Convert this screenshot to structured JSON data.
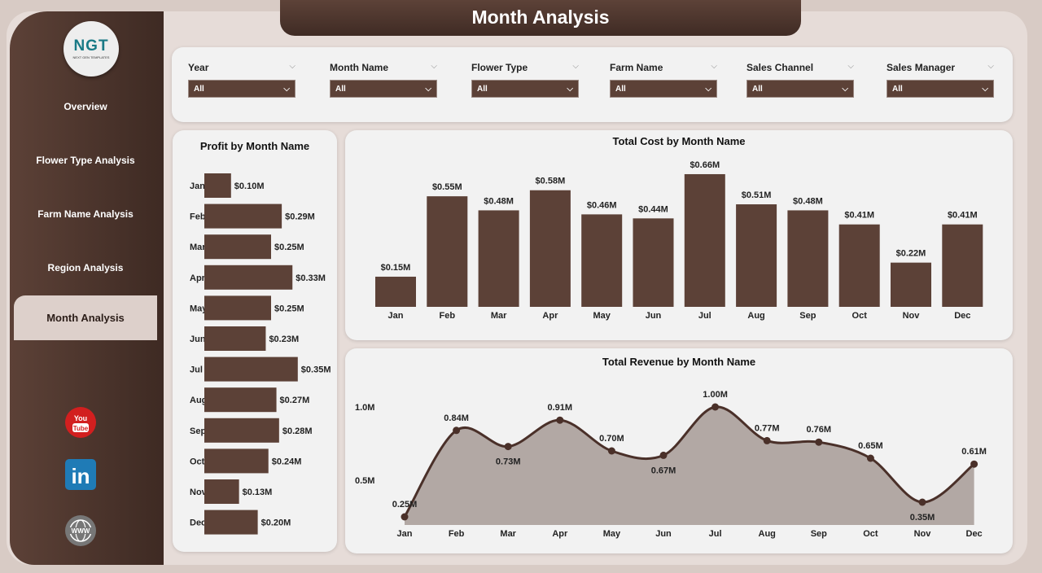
{
  "title": "Month Analysis",
  "logo": {
    "text": "NGT",
    "sub": "NEXT GEN TEMPLATES"
  },
  "nav": [
    {
      "label": "Overview"
    },
    {
      "label": "Flower Type Analysis"
    },
    {
      "label": "Farm Name Analysis"
    },
    {
      "label": "Region Analysis"
    },
    {
      "label": "Month Analysis",
      "active": true
    }
  ],
  "social": [
    {
      "icon": "youtube-icon",
      "label": "You Tube"
    },
    {
      "icon": "linkedin-icon",
      "label": "in"
    },
    {
      "icon": "globe-icon",
      "label": "WWW"
    }
  ],
  "filters": [
    {
      "label": "Year",
      "value": "All"
    },
    {
      "label": "Month Name",
      "value": "All"
    },
    {
      "label": "Flower Type",
      "value": "All"
    },
    {
      "label": "Farm Name",
      "value": "All"
    },
    {
      "label": "Sales Channel",
      "value": "All"
    },
    {
      "label": "Sales Manager",
      "value": "All"
    }
  ],
  "colors": {
    "brown": "#5c4137",
    "area": "#b2a8a4",
    "line": "#4a3029"
  },
  "chart_data": [
    {
      "type": "bar",
      "orientation": "horizontal",
      "title": "Profit by Month Name",
      "categories": [
        "Jan",
        "Feb",
        "Mar",
        "Apr",
        "May",
        "Jun",
        "Jul",
        "Aug",
        "Sep",
        "Oct",
        "Nov",
        "Dec"
      ],
      "values": [
        0.1,
        0.29,
        0.25,
        0.33,
        0.25,
        0.23,
        0.35,
        0.27,
        0.28,
        0.24,
        0.13,
        0.2
      ],
      "labels": [
        "$0.10M",
        "$0.29M",
        "$0.25M",
        "$0.33M",
        "$0.25M",
        "$0.23M",
        "$0.35M",
        "$0.27M",
        "$0.28M",
        "$0.24M",
        "$0.13M",
        "$0.20M"
      ]
    },
    {
      "type": "bar",
      "title": "Total Cost by Month Name",
      "categories": [
        "Jan",
        "Feb",
        "Mar",
        "Apr",
        "May",
        "Jun",
        "Jul",
        "Aug",
        "Sep",
        "Oct",
        "Nov",
        "Dec"
      ],
      "values": [
        0.15,
        0.55,
        0.48,
        0.58,
        0.46,
        0.44,
        0.66,
        0.51,
        0.48,
        0.41,
        0.22,
        0.41
      ],
      "labels": [
        "$0.15M",
        "$0.55M",
        "$0.48M",
        "$0.58M",
        "$0.46M",
        "$0.44M",
        "$0.66M",
        "$0.51M",
        "$0.48M",
        "$0.41M",
        "$0.22M",
        "$0.41M"
      ]
    },
    {
      "type": "area",
      "title": "Total Revenue by Month Name",
      "categories": [
        "Jan",
        "Feb",
        "Mar",
        "Apr",
        "May",
        "Jun",
        "Jul",
        "Aug",
        "Sep",
        "Oct",
        "Nov",
        "Dec"
      ],
      "values": [
        0.25,
        0.84,
        0.73,
        0.91,
        0.7,
        0.67,
        1.0,
        0.77,
        0.76,
        0.65,
        0.35,
        0.61
      ],
      "labels": [
        "0.25M",
        "0.84M",
        "0.73M",
        "0.91M",
        "0.70M",
        "0.67M",
        "1.00M",
        "0.77M",
        "0.76M",
        "0.65M",
        "0.35M",
        "0.61M"
      ],
      "yticks": [
        "0.5M",
        "1.0M"
      ],
      "ytick_values": [
        0.5,
        1.0
      ]
    }
  ]
}
